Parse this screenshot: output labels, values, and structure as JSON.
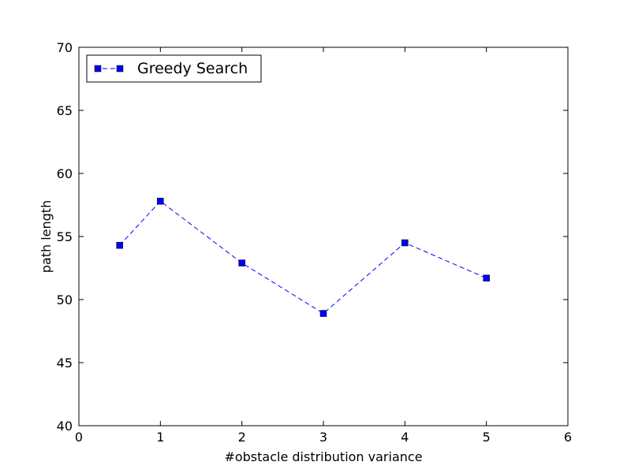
{
  "chart_data": {
    "type": "line",
    "xlabel": "#obstacle distribution variance",
    "ylabel": "path length",
    "xlim": [
      0,
      6
    ],
    "ylim": [
      40,
      70
    ],
    "x_ticks": [
      0,
      1,
      2,
      3,
      4,
      5,
      6
    ],
    "y_ticks": [
      40,
      45,
      50,
      55,
      60,
      65,
      70
    ],
    "grid": false,
    "legend_position": "upper-left",
    "series": [
      {
        "name": "Greedy Search",
        "color": "#0000ff",
        "line_style": "dashed",
        "marker": "square",
        "x": [
          0.5,
          1,
          2,
          3,
          4,
          5
        ],
        "y": [
          54.3,
          57.8,
          52.9,
          48.9,
          54.5,
          51.7
        ]
      }
    ]
  }
}
